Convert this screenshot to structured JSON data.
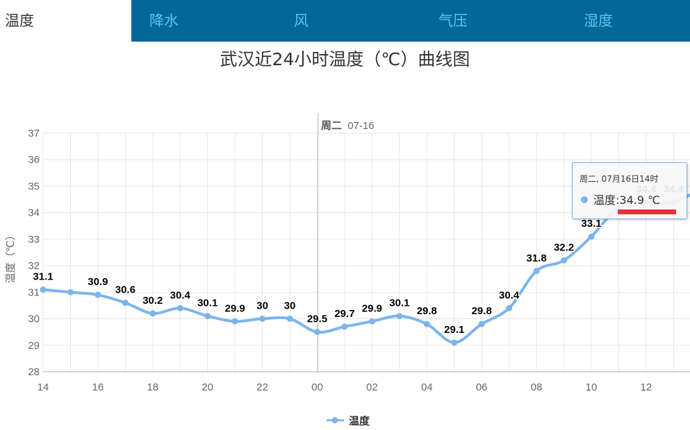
{
  "tabs": [
    {
      "label": "温度",
      "active": true
    },
    {
      "label": "降水",
      "active": false
    },
    {
      "label": "风",
      "active": false
    },
    {
      "label": "气压",
      "active": false
    },
    {
      "label": "湿度",
      "active": false
    }
  ],
  "chart_title": "武汉近24小时温度（℃）曲线图",
  "colors": {
    "tab_bar": "#03679a",
    "tab_text": "#56c7ea",
    "series": "#7cb5ec",
    "tooltip_marker": "#e8323c"
  },
  "tooltip": {
    "header": "周二, 07月16日14时",
    "series_label": "温度",
    "value_text": ":34.9 ℃"
  },
  "chart_data": {
    "type": "line",
    "x": [
      "14",
      "15",
      "16",
      "17",
      "18",
      "19",
      "20",
      "21",
      "22",
      "23",
      "00",
      "01",
      "02",
      "03",
      "04",
      "05",
      "06",
      "07",
      "08",
      "09",
      "10",
      "11",
      "12",
      "13",
      "14"
    ],
    "x_tick_labels": [
      "14",
      "16",
      "18",
      "20",
      "22",
      "00",
      "02",
      "04",
      "06",
      "08",
      "10",
      "12"
    ],
    "series": [
      {
        "name": "温度",
        "values": [
          31.1,
          31.0,
          30.9,
          30.6,
          30.2,
          30.4,
          30.1,
          29.9,
          30.0,
          30.0,
          29.5,
          29.7,
          29.9,
          30.1,
          29.8,
          29.1,
          29.8,
          30.4,
          31.8,
          32.2,
          33.1,
          34.2,
          34.4,
          34.4,
          34.9
        ],
        "labels": [
          "31.1",
          "",
          "30.9",
          "30.6",
          "30.2",
          "30.4",
          "30.1",
          "29.9",
          "30",
          "30",
          "29.5",
          "29.7",
          "29.9",
          "30.1",
          "29.8",
          "29.1",
          "29.8",
          "30.4",
          "31.8",
          "32.2",
          "33.1",
          "",
          "34.4",
          "34.4",
          ""
        ]
      }
    ],
    "ylabel": "温度（℃）",
    "ylim": [
      28,
      37
    ],
    "y_ticks": [
      "28",
      "29",
      "30",
      "31",
      "32",
      "33",
      "34",
      "35",
      "36",
      "37"
    ],
    "day_separator": {
      "label_day": "周二",
      "label_date": "07-16"
    },
    "grid": true,
    "legend": "bottom-center"
  }
}
